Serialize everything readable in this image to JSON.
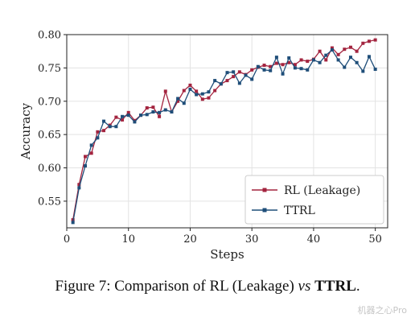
{
  "caption": {
    "prefix": "Figure 7: Comparison of RL (Leakage) ",
    "vs": "vs",
    "emph": "TTRL",
    "suffix": "."
  },
  "watermark": "机器之心Pro",
  "colors": {
    "rl": "#a3243f",
    "ttrl": "#1f4e79",
    "grid": "#e3e3e3",
    "axis": "#222222"
  },
  "chart_data": {
    "type": "line",
    "title": "",
    "xlabel": "Steps",
    "ylabel": "Accuracy",
    "xlim": [
      0,
      52
    ],
    "ylim": [
      0.51,
      0.8
    ],
    "xticks": [
      0,
      10,
      20,
      30,
      40,
      50
    ],
    "yticks": [
      0.55,
      0.6,
      0.65,
      0.7,
      0.75,
      0.8
    ],
    "grid": true,
    "legend_position": "lower-right",
    "x": [
      1,
      2,
      3,
      4,
      5,
      6,
      7,
      8,
      9,
      10,
      11,
      12,
      13,
      14,
      15,
      16,
      17,
      18,
      19,
      20,
      21,
      22,
      23,
      24,
      25,
      26,
      27,
      28,
      29,
      30,
      31,
      32,
      33,
      34,
      35,
      36,
      37,
      38,
      39,
      40,
      41,
      42,
      43,
      44,
      45,
      46,
      47,
      48,
      49,
      50
    ],
    "series": [
      {
        "name": "RL (Leakage)",
        "values": [
          0.522,
          0.575,
          0.617,
          0.622,
          0.654,
          0.656,
          0.664,
          0.676,
          0.672,
          0.683,
          0.671,
          0.679,
          0.69,
          0.691,
          0.677,
          0.715,
          0.684,
          0.7,
          0.716,
          0.724,
          0.715,
          0.703,
          0.705,
          0.716,
          0.726,
          0.731,
          0.737,
          0.744,
          0.74,
          0.747,
          0.751,
          0.754,
          0.752,
          0.757,
          0.755,
          0.758,
          0.755,
          0.762,
          0.76,
          0.763,
          0.775,
          0.762,
          0.78,
          0.77,
          0.778,
          0.781,
          0.775,
          0.787,
          0.79,
          0.792
        ]
      },
      {
        "name": "TTRL",
        "values": [
          0.518,
          0.57,
          0.603,
          0.634,
          0.645,
          0.67,
          0.662,
          0.662,
          0.677,
          0.679,
          0.669,
          0.679,
          0.68,
          0.684,
          0.683,
          0.687,
          0.684,
          0.704,
          0.697,
          0.718,
          0.71,
          0.711,
          0.714,
          0.731,
          0.726,
          0.743,
          0.744,
          0.727,
          0.739,
          0.733,
          0.752,
          0.747,
          0.746,
          0.766,
          0.741,
          0.765,
          0.75,
          0.749,
          0.747,
          0.762,
          0.758,
          0.769,
          0.777,
          0.762,
          0.751,
          0.766,
          0.758,
          0.745,
          0.767,
          0.748
        ]
      }
    ]
  }
}
